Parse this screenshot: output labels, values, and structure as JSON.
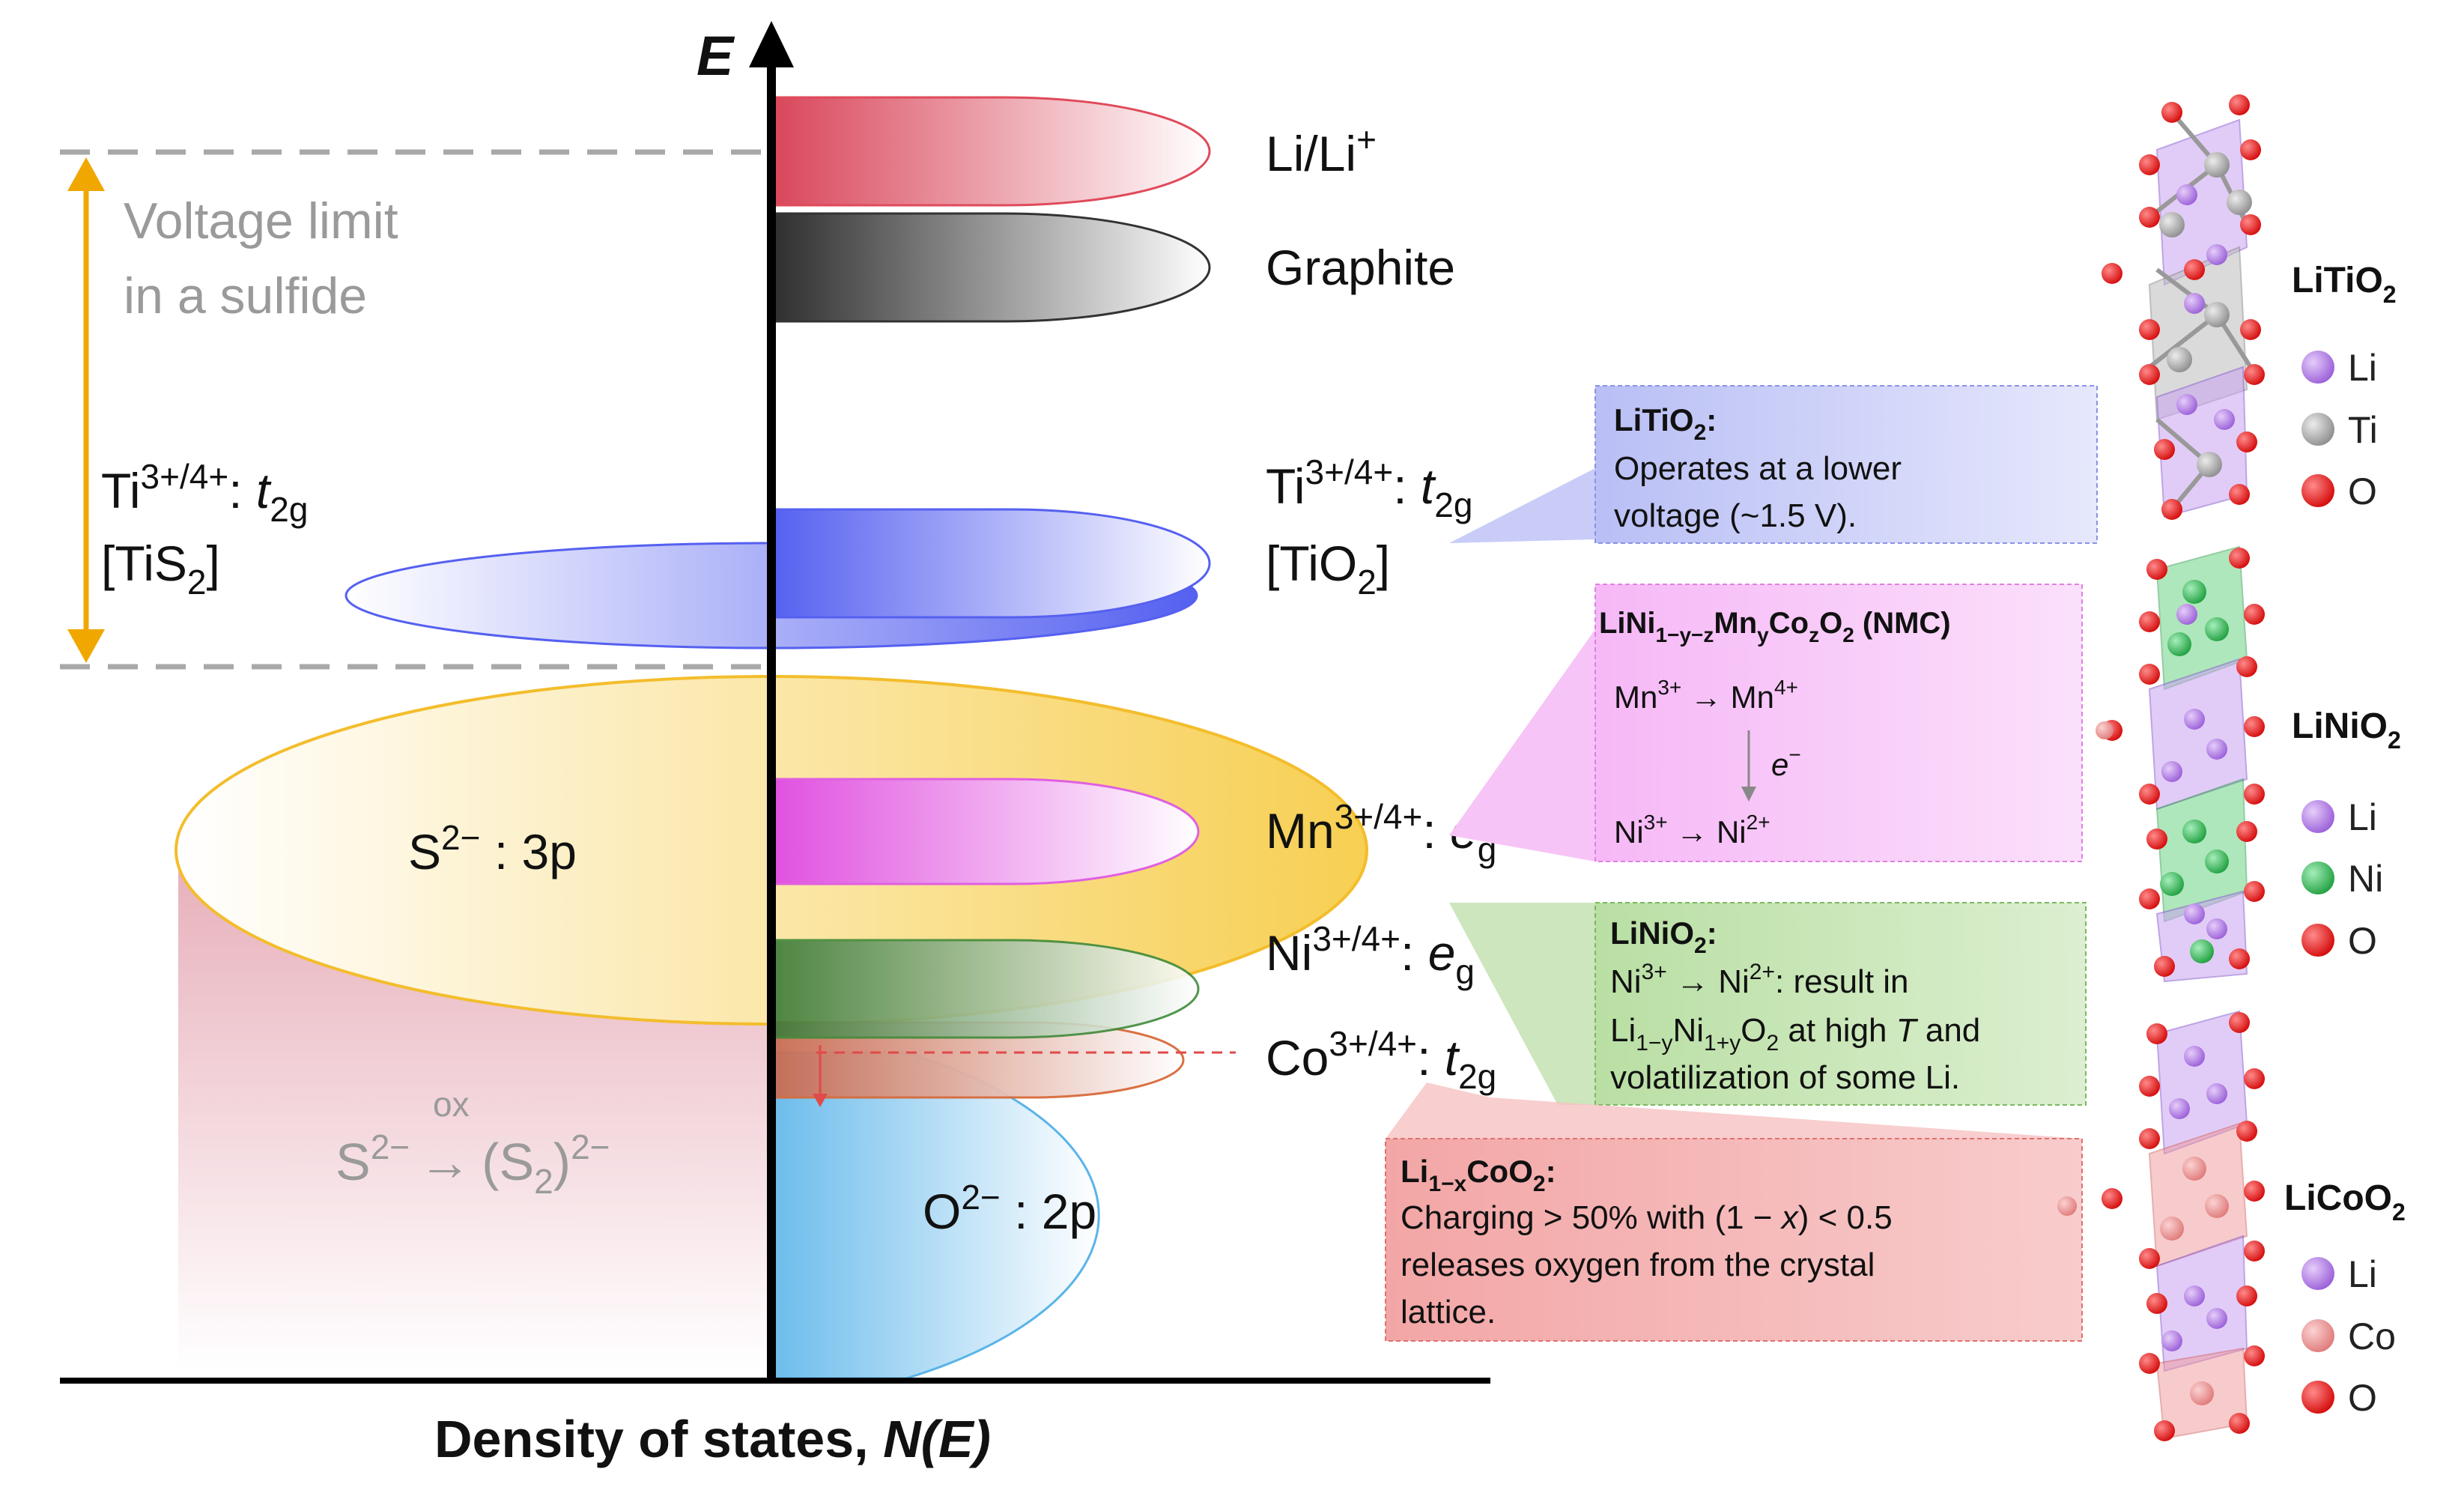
{
  "axis": {
    "y_label": "E",
    "x_label_prefix": "Density of states, ",
    "x_label_italic": "N(E)"
  },
  "voltage_limit": {
    "line1": "Voltage limit",
    "line2": "in a sulfide"
  },
  "left_labels": {
    "ti_tis2_main": "Ti",
    "ti_tis2_sup": "3+/4+",
    "ti_tis2_colon": ": ",
    "ti_tis2_orb": "t",
    "ti_tis2_orb_sub": "2g",
    "tis2_open": "[TiS",
    "tis2_sub": "2",
    "tis2_close": "]",
    "s_band_main": "S",
    "s_band_sup": "2−",
    "s_band_rest": " : 3p",
    "ox_label": "ox",
    "ox_lhs": "S",
    "ox_lhs_sup": "2−",
    "ox_arrow": "→",
    "ox_rhs": "(S",
    "ox_rhs_sub": "2",
    "ox_rhs_close": ")",
    "ox_rhs_sup": "2−"
  },
  "right_labels": {
    "li": "Li/Li",
    "li_sup": "+",
    "graphite": "Graphite",
    "ti_main": "Ti",
    "ti_sup": "3+/4+",
    "ti_colon": ": ",
    "ti_orb": "t",
    "ti_orb_sub": "2g",
    "tio2_open": "[TiO",
    "tio2_sub": "2",
    "tio2_close": "]",
    "mn_main": "Mn",
    "mn_sup": "3+/4+",
    "mn_colon": ": ",
    "mn_orb": "e",
    "mn_orb_sub": "g",
    "ni_main": "Ni",
    "ni_sup": "3+/4+",
    "ni_colon": ": ",
    "ni_orb": "e",
    "ni_orb_sub": "g",
    "co_main": "Co",
    "co_sup": "3+/4+",
    "co_colon": ": ",
    "co_orb": "t",
    "co_orb_sub": "2g",
    "o_band_main": "O",
    "o_band_sup": "2−",
    "o_band_rest": " : 2p"
  },
  "boxes": {
    "litio2": {
      "title_a": "LiTiO",
      "title_sub": "2",
      "title_b": ":",
      "line1": "Operates at a lower",
      "line2": "voltage (~1.5 V)."
    },
    "nmc": {
      "t1": "LiNi",
      "t1_sub": "1−y−z",
      "t2": "Mn",
      "t2_sub": "y",
      "t3": "Co",
      "t3_sub": "z",
      "t4": "O",
      "t4_sub": "2",
      "t5": " (NMC)",
      "mn_a": "Mn",
      "mn_a_sup": "3+",
      "mn_arrow": " → ",
      "mn_b": "Mn",
      "mn_b_sup": "4+",
      "electron": "e",
      "electron_sup": "−",
      "ni_a": "Ni",
      "ni_a_sup": "3+",
      "ni_arrow": " → ",
      "ni_b": "Ni",
      "ni_b_sup": "2+"
    },
    "linio2": {
      "title_a": "LiNiO",
      "title_sub": "2",
      "title_b": ":",
      "l1_a": "Ni",
      "l1_a_sup": "3+",
      "l1_arrow": " → ",
      "l1_b": "Ni",
      "l1_b_sup": "2+",
      "l1_c": ": result in",
      "l2_a": "Li",
      "l2_a_sub": "1−y",
      "l2_b": "Ni",
      "l2_b_sub": "1+y",
      "l2_c": "O",
      "l2_c_sub": "2",
      "l2_d": " at high ",
      "l2_e": "T",
      "l2_f": " and",
      "line3": "volatilization of some Li."
    },
    "licoo2": {
      "title_a": "Li",
      "title_sub": "1−x",
      "title_b": "CoO",
      "title_sub2": "2",
      "title_c": ":",
      "l1_a": "Charging > 50% with (1 − ",
      "l1_x": "x",
      "l1_b": ") < 0.5",
      "line2": "releases oxygen from the crystal",
      "line3": "lattice."
    }
  },
  "materials": [
    {
      "name_a": "LiTiO",
      "name_sub": "2",
      "legend": [
        "Li",
        "Ti",
        "O"
      ]
    },
    {
      "name_a": "LiNiO",
      "name_sub": "2",
      "legend": [
        "Li",
        "Ni",
        "O"
      ]
    },
    {
      "name_a": "LiCoO",
      "name_sub": "2",
      "legend": [
        "Li",
        "Co",
        "O"
      ]
    }
  ],
  "colors": {
    "li_band": "#e04a5a",
    "graphite_band": "#3a3a3a",
    "ti_band": "#4f5ef0",
    "s_band": "#f6c944",
    "mn_band": "#e060e0",
    "ni_band": "#3f8a3a",
    "co_band": "#d86a3a",
    "o_band": "#5ab4e8",
    "voltage_arrow": "#f0a800",
    "li_atom": "#a86de0",
    "ti_atom": "#a8a8a8",
    "ni_atom": "#30b050",
    "co_atom": "#e88a8a",
    "o_atom": "#e01818"
  }
}
